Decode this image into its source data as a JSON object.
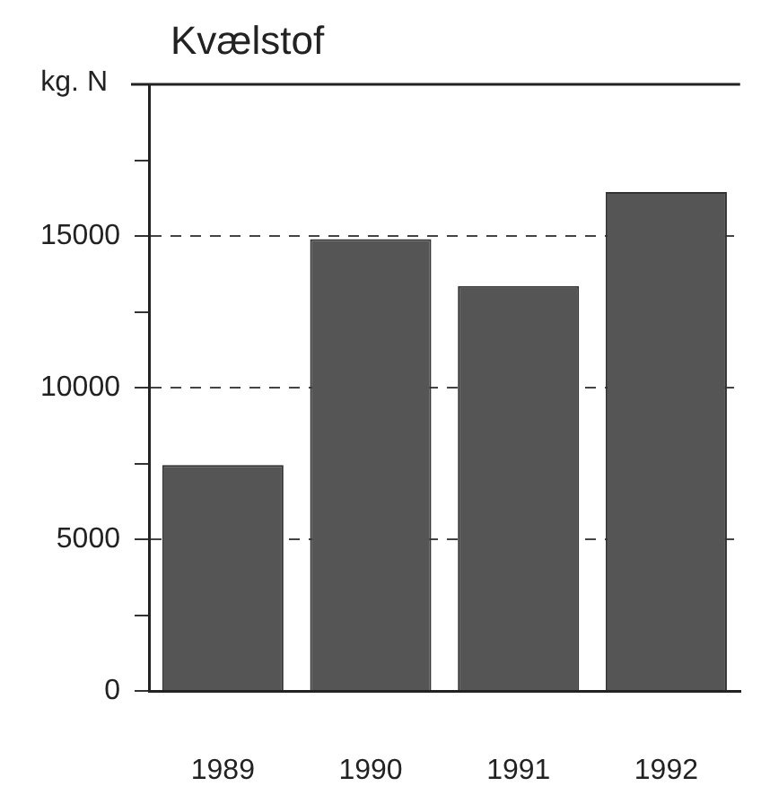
{
  "chart_data": {
    "type": "bar",
    "title": "Kvælstof",
    "ylabel": "kg. N",
    "categories": [
      "1989",
      "1990",
      "1991",
      "1992"
    ],
    "values": [
      7450,
      14900,
      13350,
      16450
    ],
    "color": "#555555",
    "ylim": [
      0,
      20000
    ],
    "yticks": [
      0,
      {
        "value": 2500,
        "label": null
      },
      5000,
      {
        "value": 7500,
        "label": null
      },
      10000,
      {
        "value": 12500,
        "label": null
      },
      15000,
      {
        "value": 17500,
        "label": null
      },
      {
        "value": 20000,
        "label": null
      }
    ],
    "grid": "y",
    "line_style": "dashed"
  }
}
